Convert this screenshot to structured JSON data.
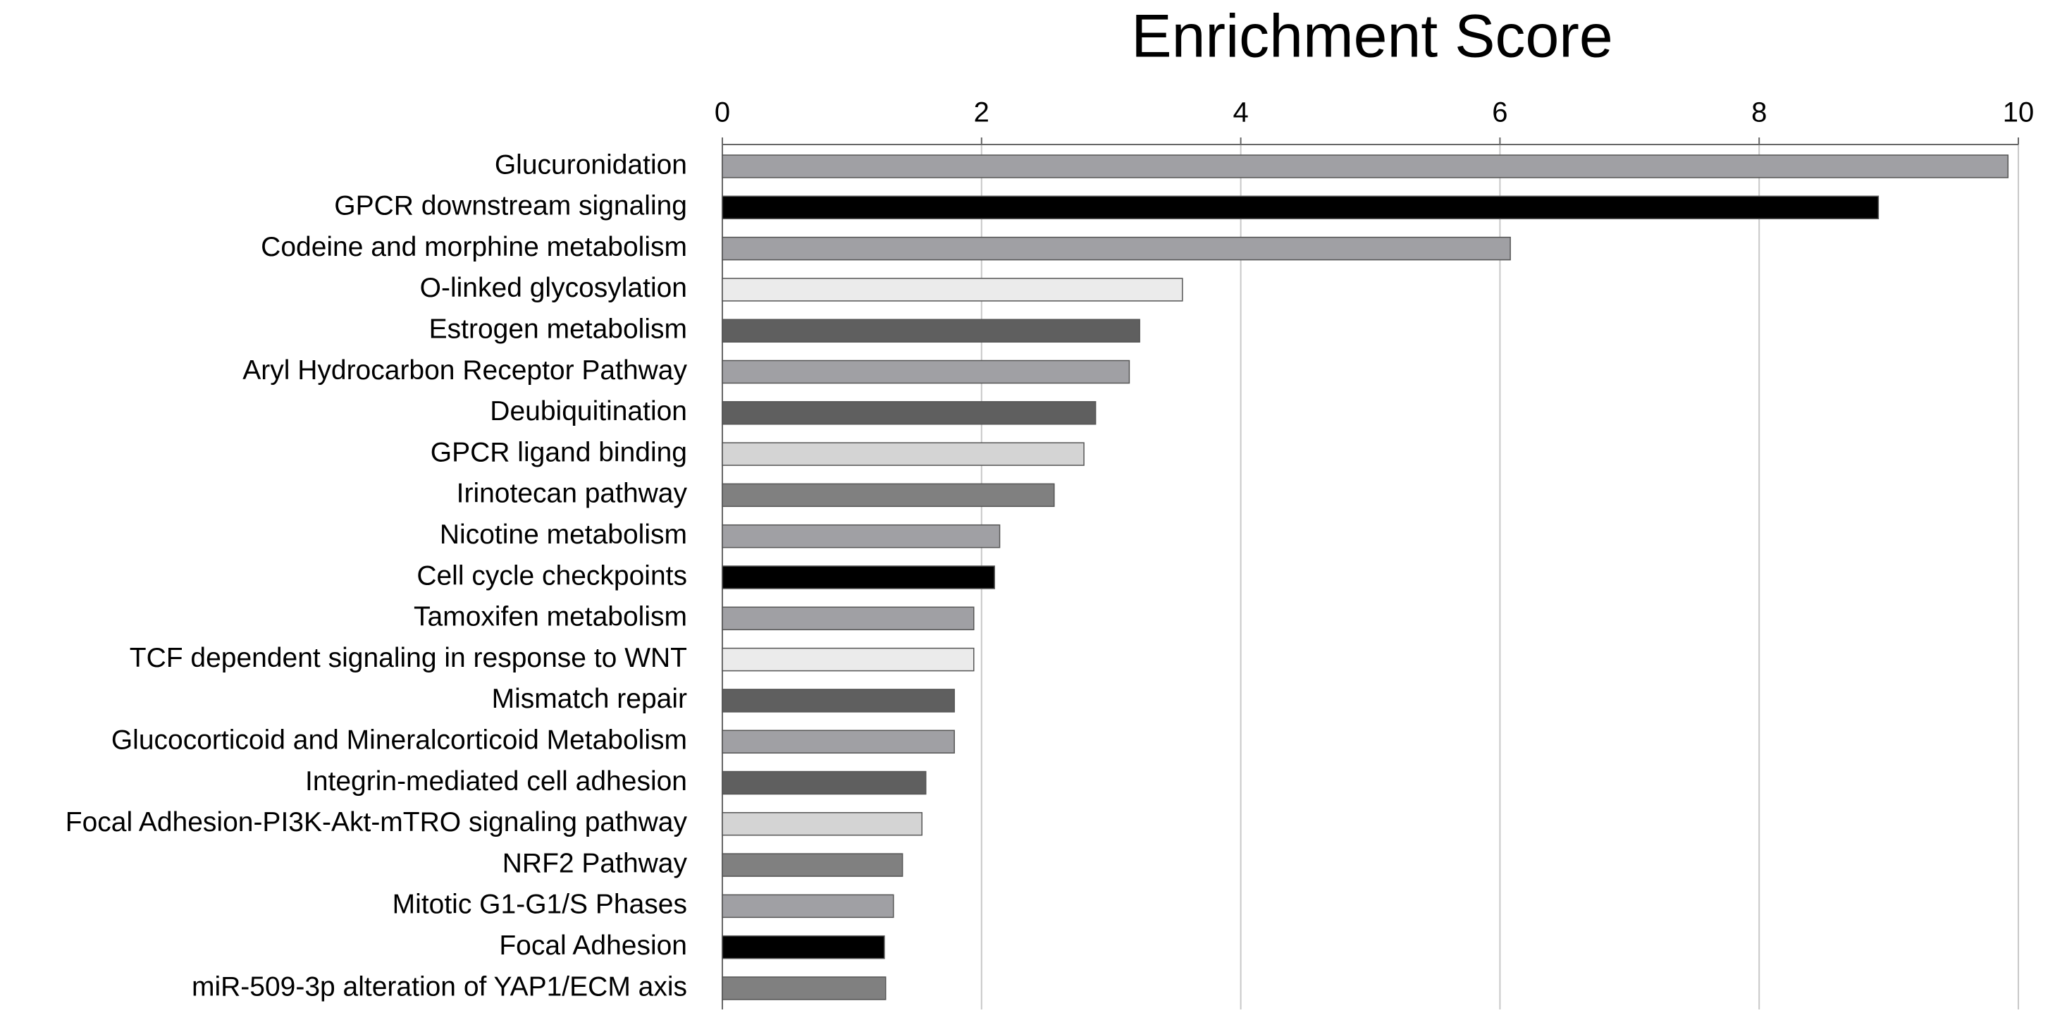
{
  "chart_data": {
    "type": "hbar",
    "title": "Enrichment Score",
    "categories": [
      "Glucuronidation",
      "GPCR downstream signaling",
      "Codeine and morphine metabolism",
      "O-linked glycosylation",
      "Estrogen metabolism",
      "Aryl Hydrocarbon Receptor Pathway",
      "Deubiquitination",
      "GPCR ligand binding",
      "Irinotecan pathway",
      "Nicotine metabolism",
      "Cell cycle checkpoints",
      "Tamoxifen metabolism",
      "TCF dependent signaling in response to WNT",
      "Mismatch repair",
      "Glucocorticoid and Mineralcorticoid Metabolism",
      "Integrin-mediated cell adhesion",
      "Focal Adhesion-PI3K-Akt-mTRO signaling pathway",
      "NRF2 Pathway",
      "Mitotic G1-G1/S Phases",
      "Focal Adhesion",
      "miR-509-3p alteration of YAP1/ECM axis"
    ],
    "values": [
      9.92,
      8.92,
      6.08,
      3.55,
      3.22,
      3.14,
      2.88,
      2.79,
      2.56,
      2.14,
      2.1,
      1.94,
      1.94,
      1.79,
      1.79,
      1.57,
      1.54,
      1.39,
      1.32,
      1.25,
      1.26
    ],
    "colors": [
      "#a0a0a4",
      "#000000",
      "#a0a0a4",
      "#ebebeb",
      "#5f5f5f",
      "#a0a0a4",
      "#5f5f5f",
      "#d4d4d4",
      "#808080",
      "#a0a0a4",
      "#000000",
      "#a0a0a4",
      "#ebebeb",
      "#5f5f5f",
      "#a0a0a4",
      "#5f5f5f",
      "#d4d4d4",
      "#808080",
      "#a0a0a4",
      "#000000",
      "#808080"
    ],
    "xlim": [
      0,
      10
    ],
    "xticks": [
      0,
      2,
      4,
      6,
      8,
      10
    ],
    "grid": true
  }
}
